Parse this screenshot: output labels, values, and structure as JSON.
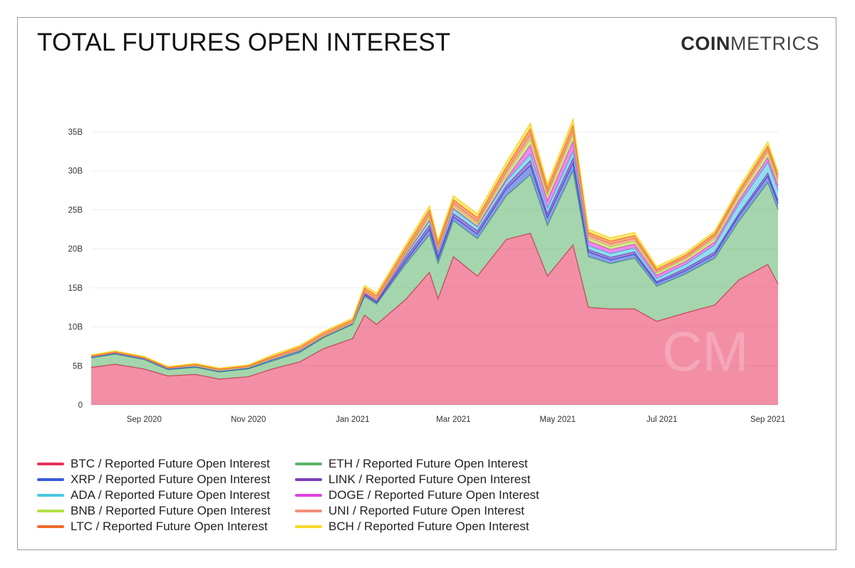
{
  "header": {
    "title": "TOTAL FUTURES OPEN INTEREST",
    "logo_bold": "COIN",
    "logo_light": "METRICS"
  },
  "watermark": "CM",
  "chart_data": {
    "type": "area",
    "stacked": true,
    "title": "TOTAL FUTURES OPEN INTEREST",
    "x_ticks": [
      "Sep 2020",
      "Nov 2020",
      "Jan 2021",
      "Mar 2021",
      "May 2021",
      "Jul 2021",
      "Sep 2021"
    ],
    "y_ticks": [
      "0",
      "5B",
      "10B",
      "15B",
      "20B",
      "25B",
      "30B",
      "35B"
    ],
    "ylim": [
      0,
      37000000000
    ],
    "grid": "horizontal",
    "legend_position": "bottom",
    "x": [
      "2020-08-01",
      "2020-08-15",
      "2020-09-01",
      "2020-09-15",
      "2020-10-01",
      "2020-10-15",
      "2020-11-01",
      "2020-11-15",
      "2020-12-01",
      "2020-12-15",
      "2021-01-01",
      "2021-01-08",
      "2021-01-15",
      "2021-02-01",
      "2021-02-15",
      "2021-02-20",
      "2021-03-01",
      "2021-03-15",
      "2021-04-01",
      "2021-04-15",
      "2021-04-25",
      "2021-05-10",
      "2021-05-19",
      "2021-06-01",
      "2021-06-15",
      "2021-06-28",
      "2021-07-15",
      "2021-08-01",
      "2021-08-15",
      "2021-09-01",
      "2021-09-07"
    ],
    "series": [
      {
        "name": "BTC / Reported Future Open Interest",
        "color": "#e8335c",
        "values": [
          4.8,
          5.2,
          4.6,
          3.7,
          3.9,
          3.3,
          3.6,
          4.6,
          5.5,
          7.2,
          8.5,
          11.5,
          10.3,
          13.5,
          17.0,
          13.6,
          19.0,
          16.5,
          21.2,
          22.0,
          16.5,
          20.5,
          12.5,
          12.3,
          12.3,
          10.7,
          11.8,
          12.8,
          16.0,
          18.0,
          15.5
        ]
      },
      {
        "name": "ETH / Reported Future Open Interest",
        "color": "#5bb36a",
        "values": [
          1.2,
          1.3,
          1.2,
          0.8,
          0.9,
          0.9,
          1.0,
          1.0,
          1.2,
          1.4,
          1.8,
          2.4,
          2.6,
          4.5,
          4.8,
          4.5,
          4.6,
          4.8,
          5.6,
          7.5,
          6.5,
          9.5,
          6.5,
          5.8,
          6.5,
          4.5,
          5.0,
          6.0,
          7.5,
          10.5,
          9.5
        ]
      },
      {
        "name": "XRP / Reported Future Open Interest",
        "color": "#3b5bdb",
        "values": [
          0.1,
          0.1,
          0.1,
          0.1,
          0.1,
          0.1,
          0.1,
          0.2,
          0.2,
          0.1,
          0.1,
          0.2,
          0.2,
          0.4,
          0.7,
          0.6,
          0.5,
          0.6,
          0.9,
          1.2,
          1.0,
          1.0,
          0.6,
          0.5,
          0.5,
          0.4,
          0.4,
          0.5,
          0.7,
          0.8,
          0.8
        ]
      },
      {
        "name": "LINK / Reported Future Open Interest",
        "color": "#7b3fb8",
        "values": [
          0.1,
          0.1,
          0.1,
          0.1,
          0.1,
          0.1,
          0.1,
          0.1,
          0.1,
          0.1,
          0.1,
          0.2,
          0.2,
          0.4,
          0.5,
          0.4,
          0.4,
          0.4,
          0.4,
          0.6,
          0.5,
          0.6,
          0.3,
          0.3,
          0.3,
          0.2,
          0.3,
          0.3,
          0.3,
          0.4,
          0.4
        ]
      },
      {
        "name": "ADA / Reported Future Open Interest",
        "color": "#48c8e0",
        "values": [
          0.0,
          0.0,
          0.0,
          0.0,
          0.0,
          0.0,
          0.0,
          0.0,
          0.0,
          0.0,
          0.0,
          0.1,
          0.1,
          0.3,
          0.6,
          0.5,
          0.6,
          0.5,
          0.6,
          0.8,
          0.7,
          0.9,
          0.5,
          0.5,
          0.5,
          0.4,
          0.5,
          0.9,
          1.2,
          1.4,
          1.3
        ]
      },
      {
        "name": "DOGE / Reported Future Open Interest",
        "color": "#e040e0",
        "values": [
          0.0,
          0.0,
          0.0,
          0.0,
          0.0,
          0.0,
          0.0,
          0.0,
          0.0,
          0.0,
          0.0,
          0.0,
          0.0,
          0.1,
          0.1,
          0.1,
          0.1,
          0.1,
          0.3,
          1.2,
          1.0,
          1.3,
          0.6,
          0.5,
          0.5,
          0.4,
          0.4,
          0.4,
          0.5,
          0.6,
          0.6
        ]
      },
      {
        "name": "BNB / Reported Future Open Interest",
        "color": "#b5e045",
        "values": [
          0.0,
          0.0,
          0.0,
          0.0,
          0.0,
          0.0,
          0.0,
          0.0,
          0.0,
          0.0,
          0.0,
          0.1,
          0.1,
          0.2,
          0.4,
          0.3,
          0.3,
          0.3,
          0.5,
          0.8,
          0.6,
          0.8,
          0.4,
          0.4,
          0.4,
          0.3,
          0.3,
          0.4,
          0.5,
          0.6,
          0.5
        ]
      },
      {
        "name": "UNI / Reported Future Open Interest",
        "color": "#f0917a",
        "values": [
          0.0,
          0.0,
          0.0,
          0.0,
          0.1,
          0.1,
          0.1,
          0.1,
          0.1,
          0.1,
          0.1,
          0.1,
          0.1,
          0.2,
          0.3,
          0.2,
          0.3,
          0.3,
          0.4,
          0.5,
          0.4,
          0.5,
          0.3,
          0.3,
          0.3,
          0.2,
          0.2,
          0.3,
          0.3,
          0.4,
          0.4
        ]
      },
      {
        "name": "LTC / Reported Future Open Interest",
        "color": "#f06a2a",
        "values": [
          0.1,
          0.1,
          0.1,
          0.1,
          0.1,
          0.1,
          0.1,
          0.2,
          0.3,
          0.3,
          0.3,
          0.4,
          0.4,
          0.5,
          0.6,
          0.5,
          0.5,
          0.5,
          0.6,
          0.8,
          0.6,
          0.8,
          0.4,
          0.4,
          0.4,
          0.3,
          0.3,
          0.4,
          0.4,
          0.5,
          0.5
        ]
      },
      {
        "name": "BCH / Reported Future Open Interest",
        "color": "#f7d82a",
        "values": [
          0.1,
          0.1,
          0.1,
          0.1,
          0.1,
          0.1,
          0.1,
          0.2,
          0.2,
          0.2,
          0.2,
          0.3,
          0.3,
          0.4,
          0.5,
          0.4,
          0.5,
          0.5,
          0.6,
          0.7,
          0.5,
          0.7,
          0.4,
          0.4,
          0.4,
          0.3,
          0.3,
          0.3,
          0.4,
          0.5,
          0.4
        ]
      }
    ],
    "units": "billions USD (values above in B)"
  },
  "legend": {
    "left": [
      {
        "label": "BTC / Reported Future Open Interest",
        "color": "#e8335c"
      },
      {
        "label": "XRP / Reported Future Open Interest",
        "color": "#3b5bdb"
      },
      {
        "label": "ADA / Reported Future Open Interest",
        "color": "#48c8e0"
      },
      {
        "label": "BNB / Reported Future Open Interest",
        "color": "#b5e045"
      },
      {
        "label": "LTC / Reported Future Open Interest",
        "color": "#f06a2a"
      }
    ],
    "right": [
      {
        "label": "ETH / Reported Future Open Interest",
        "color": "#5bb36a"
      },
      {
        "label": "LINK / Reported Future Open Interest",
        "color": "#7b3fb8"
      },
      {
        "label": "DOGE / Reported Future Open Interest",
        "color": "#e040e0"
      },
      {
        "label": "UNI / Reported Future Open Interest",
        "color": "#f0917a"
      },
      {
        "label": "BCH / Reported Future Open Interest",
        "color": "#f7d82a"
      }
    ]
  }
}
